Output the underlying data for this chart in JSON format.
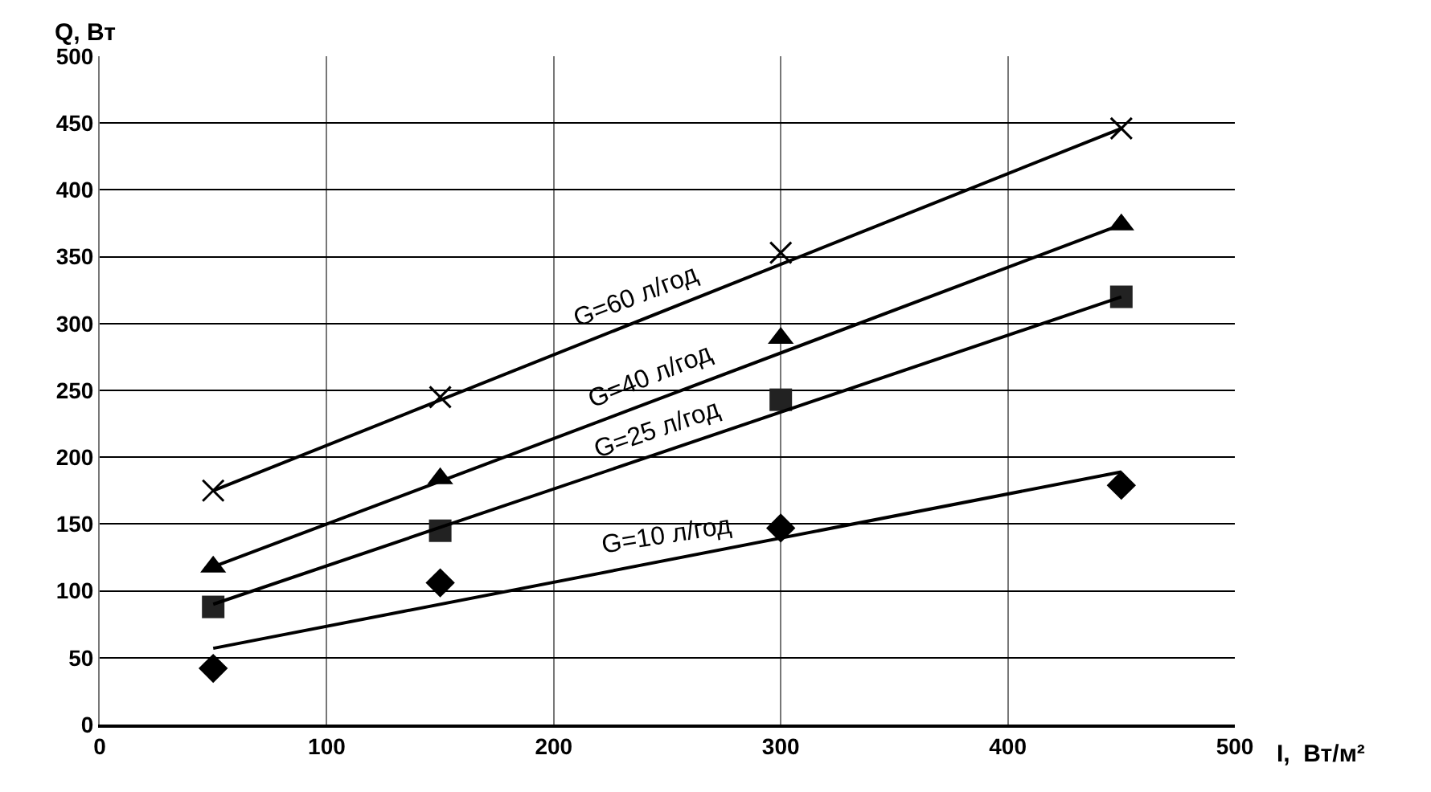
{
  "chart_data": {
    "type": "scatter",
    "xlabel": "I,  Вт/м²",
    "ylabel": "Q, Вт",
    "x": [
      50,
      150,
      300,
      450
    ],
    "series": [
      {
        "marker": "cross",
        "color": "#000000",
        "values": [
          175,
          245,
          353,
          446
        ]
      },
      {
        "marker": "triangle",
        "color": "#000000",
        "values": [
          118,
          184,
          289,
          374
        ]
      },
      {
        "marker": "square",
        "color": "#222222",
        "values": [
          88,
          145,
          243,
          320
        ]
      },
      {
        "marker": "diamond",
        "color": "#000000",
        "values": [
          42,
          106,
          147,
          179
        ]
      },
      {
        "type": "line",
        "marker": "none",
        "color": "#000000",
        "values": [
          175,
          null,
          null,
          446
        ]
      },
      {
        "type": "line",
        "marker": "none",
        "color": "#000000",
        "values": [
          118,
          null,
          null,
          374
        ]
      },
      {
        "type": "line",
        "marker": "none",
        "color": "#000000",
        "values": [
          90,
          null,
          null,
          320
        ]
      },
      {
        "type": "line",
        "marker": "none",
        "color": "#000000",
        "values": [
          57,
          null,
          null,
          189
        ]
      }
    ],
    "annotations": [
      {
        "text": "G=60 л/год",
        "x": 239,
        "y": 303
      },
      {
        "text": "G=40 л/год",
        "x": 245,
        "y": 243
      },
      {
        "text": "G=25 л/год",
        "x": 248,
        "y": 204
      },
      {
        "text": "G=10 л/год",
        "x": 252,
        "y": 124
      }
    ],
    "xlim": [
      0,
      500
    ],
    "xticks": [
      0,
      100,
      200,
      300,
      400,
      500
    ],
    "ylim": [
      0,
      500
    ],
    "yticks": [
      0,
      50,
      100,
      150,
      200,
      250,
      300,
      350,
      400,
      450,
      500
    ],
    "grid": true,
    "line_style": "solid"
  }
}
